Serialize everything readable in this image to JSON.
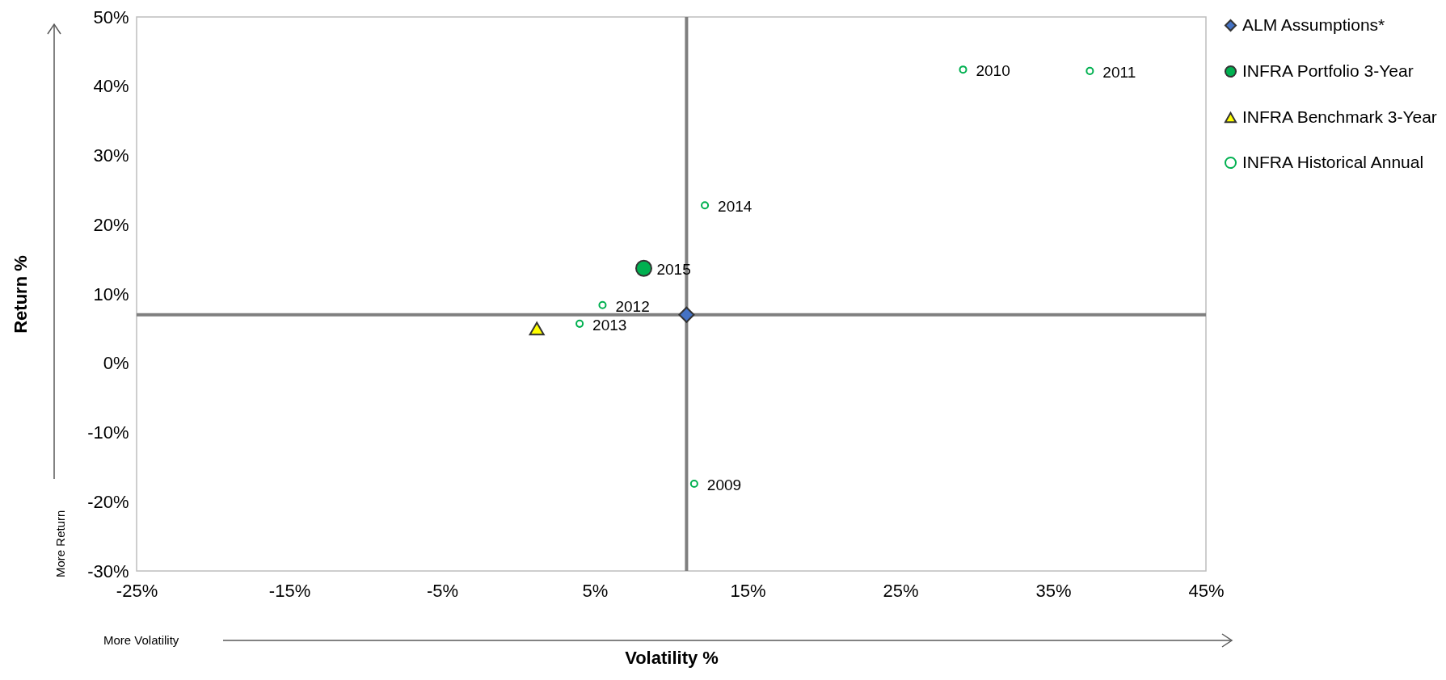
{
  "chart_data": {
    "type": "scatter",
    "xlabel": "Volatility %",
    "ylabel": "Return %",
    "xlim": [
      -25,
      45
    ],
    "xticks": [
      {
        "value": -25,
        "label": "-25%"
      },
      {
        "value": -15,
        "label": "-15%"
      },
      {
        "value": -5,
        "label": "-5%"
      },
      {
        "value": 5,
        "label": "5%"
      },
      {
        "value": 15,
        "label": "15%"
      },
      {
        "value": 25,
        "label": "25%"
      },
      {
        "value": 35,
        "label": "35%"
      },
      {
        "value": 45,
        "label": "45%"
      }
    ],
    "ylim": [
      -30,
      50
    ],
    "yticks": [
      {
        "value": -30,
        "label": "-30%"
      },
      {
        "value": -20,
        "label": "-20%"
      },
      {
        "value": -10,
        "label": "-10%"
      },
      {
        "value": 0,
        "label": "0%"
      },
      {
        "value": 10,
        "label": "10%"
      },
      {
        "value": 20,
        "label": "20%"
      },
      {
        "value": 30,
        "label": "30%"
      },
      {
        "value": 40,
        "label": "40%"
      },
      {
        "value": 50,
        "label": "50%"
      }
    ],
    "series": [
      {
        "name": "ALM Assumptions*",
        "color": "#4472c4",
        "marker": "diamond",
        "x": [
          11.0
        ],
        "values": [
          7.0
        ]
      },
      {
        "name": "INFRA Portfolio 3-Year",
        "color": "#00b050",
        "marker": "circle",
        "x": [
          8.2
        ],
        "values": [
          13.7
        ]
      },
      {
        "name": "INFRA Benchmark 3-Year",
        "color": "#ffff00",
        "marker": "triangle",
        "x": [
          1.2
        ],
        "values": [
          5.0
        ]
      },
      {
        "name": "INFRA Historical Annual",
        "color": "#00b050",
        "marker": "circle",
        "x": [
          11.5,
          29.1,
          37.4,
          5.5,
          4.0,
          12.2
        ],
        "values": [
          -17.4,
          42.4,
          42.2,
          8.4,
          5.7,
          22.8
        ]
      }
    ],
    "ref_lines": [
      {
        "axis": "x",
        "value": 11,
        "color": "#7f7f7f"
      },
      {
        "axis": "y",
        "value": 7,
        "color": "#7f7f7f"
      }
    ],
    "annotations": [
      {
        "text": "2009",
        "x": 11.5,
        "y": -17.4
      },
      {
        "text": "2010",
        "x": 29.1,
        "y": 42.4
      },
      {
        "text": "2011",
        "x": 37.4,
        "y": 42.2
      },
      {
        "text": "2012",
        "x": 5.5,
        "y": 8.4
      },
      {
        "text": "2013",
        "x": 4.0,
        "y": 5.7
      },
      {
        "text": "2014",
        "x": 12.2,
        "y": 22.8
      },
      {
        "text": "2015",
        "x": 8.2,
        "y": 13.7
      },
      "More Return",
      "More Volatility"
    ],
    "legend": "right"
  }
}
